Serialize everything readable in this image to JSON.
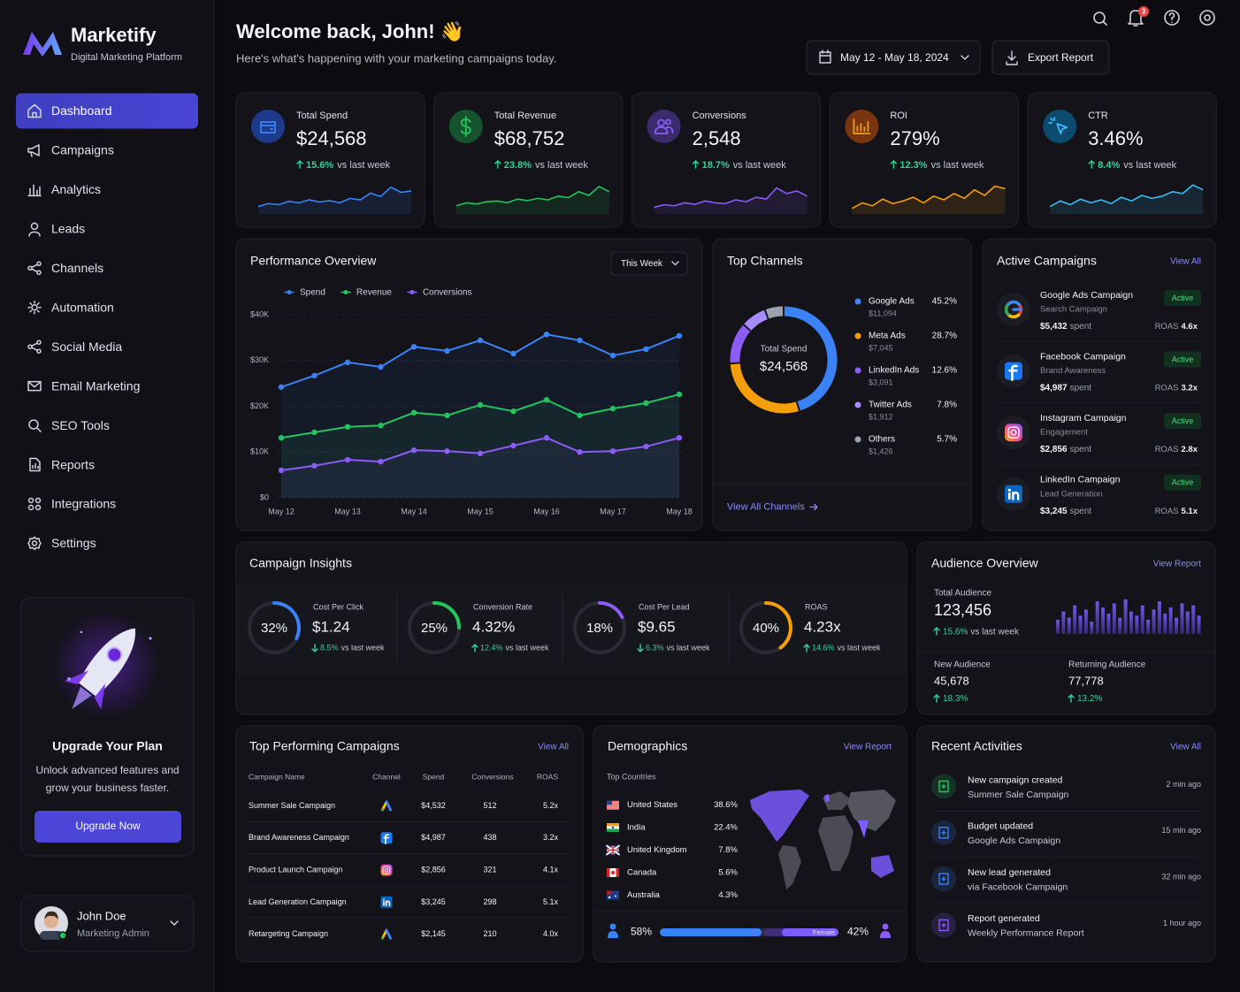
{
  "sidebar": {
    "brand": "Marketify",
    "tagline": "Digital Marketing Platform",
    "nav": [
      "Dashboard",
      "Campaigns",
      "Analytics",
      "Leads",
      "Channels",
      "Automation",
      "Social Media",
      "Email Marketing",
      "SEO Tools",
      "Reports",
      "Integrations",
      "Settings"
    ],
    "active": 0,
    "upgrade": {
      "title": "Upgrade Your Plan",
      "text": [
        "Unlock advanced features and",
        "grow your business faster."
      ],
      "button": "Upgrade Now"
    },
    "user": {
      "name": "John Doe",
      "role": "Marketing Admin"
    }
  },
  "header": {
    "title": "Welcome back, John! 👋",
    "subtitle": "Here's what's happening with your marketing campaigns today.",
    "date_range": "May 12 - May 18, 2024",
    "export": "Export Report",
    "notifications": "3"
  },
  "labels": {
    "vs_last_week": "vs last week",
    "spent": "spent",
    "roas": "ROAS",
    "active": "Active"
  },
  "kpis": {
    "ylim": [
      0,
      100
    ],
    "items": [
      {
        "label": "Total Spend",
        "value": "$24,568",
        "change": "15.6%",
        "color": "#3b82f6",
        "values": [
          20,
          28,
          25,
          34,
          30,
          38,
          32,
          36,
          30,
          42,
          38,
          56,
          47,
          72,
          58,
          62
        ]
      },
      {
        "label": "Total Revenue",
        "value": "$68,752",
        "change": "23.8%",
        "color": "#22c55e",
        "values": [
          22,
          30,
          27,
          33,
          35,
          30,
          40,
          36,
          42,
          38,
          48,
          44,
          60,
          50,
          74,
          60
        ]
      },
      {
        "label": "Conversions",
        "value": "2,548",
        "change": "18.7%",
        "color": "#8b5cf6",
        "values": [
          18,
          25,
          22,
          30,
          26,
          35,
          30,
          28,
          38,
          33,
          45,
          40,
          70,
          55,
          62,
          48
        ]
      },
      {
        "label": "ROI",
        "value": "279%",
        "change": "12.3%",
        "color": "#f59e0b",
        "values": [
          15,
          30,
          22,
          40,
          28,
          35,
          45,
          30,
          48,
          38,
          55,
          42,
          65,
          50,
          75,
          68
        ]
      },
      {
        "label": "CTR",
        "value": "3.46%",
        "change": "8.4%",
        "color": "#38bdf8",
        "values": [
          20,
          35,
          25,
          40,
          30,
          38,
          28,
          45,
          35,
          50,
          42,
          48,
          60,
          55,
          78,
          65
        ]
      }
    ]
  },
  "performance": {
    "type": "line",
    "title": "Performance Overview",
    "filter": "This Week",
    "categories": [
      "May 12",
      null,
      "May 13",
      null,
      "May 14",
      null,
      "May 15",
      null,
      "May 16",
      null,
      "May 17",
      null,
      "May 18"
    ],
    "series": [
      {
        "name": "Spend",
        "color": "#3b82f6",
        "values": [
          24200,
          26700,
          29600,
          28600,
          33000,
          32100,
          34400,
          31500,
          35700,
          34400,
          31100,
          32500,
          35400
        ]
      },
      {
        "name": "Revenue",
        "color": "#22c55e",
        "values": [
          13100,
          14300,
          15500,
          15800,
          18600,
          18000,
          20300,
          18900,
          21400,
          18000,
          19500,
          20700,
          22600
        ]
      },
      {
        "name": "Conversions",
        "color": "#8b5cf6",
        "values": [
          6000,
          7000,
          8300,
          7900,
          10400,
          10200,
          9700,
          11400,
          13100,
          10000,
          10200,
          11200,
          13100
        ]
      }
    ],
    "ylim": [
      0,
      40000
    ],
    "yticks": [
      {
        "value": 0,
        "label": "$0"
      },
      {
        "value": 10000,
        "label": "$10K"
      },
      {
        "value": 20000,
        "label": "$20K"
      },
      {
        "value": 30000,
        "label": "$30K"
      },
      {
        "value": 40000,
        "label": "$40K"
      }
    ],
    "grid": true
  },
  "channels": {
    "type": "donut",
    "title": "Top Channels",
    "center_label": "Total Spend",
    "total": "$24,568",
    "items": [
      {
        "name": "Google Ads",
        "amount": "$11,094",
        "value": 45.2,
        "value_label": "45.2%",
        "color": "#3b82f6"
      },
      {
        "name": "Meta Ads",
        "amount": "$7,045",
        "value": 28.7,
        "value_label": "28.7%",
        "color": "#f59e0b"
      },
      {
        "name": "LinkedIn Ads",
        "amount": "$3,091",
        "value": 12.6,
        "value_label": "12.6%",
        "color": "#8b5cf6"
      },
      {
        "name": "Twitter Ads",
        "amount": "$1,912",
        "value": 7.8,
        "value_label": "7.8%",
        "color": "#a78bfa"
      },
      {
        "name": "Others",
        "amount": "$1,426",
        "value": 5.7,
        "value_label": "5.7%",
        "color": "#9ca3af"
      }
    ],
    "link": "View All Channels"
  },
  "active_campaigns": {
    "title": "Active Campaigns",
    "link": "View All",
    "items": [
      {
        "name": "Google Ads Campaign",
        "type": "Search Campaign",
        "spent": "$5,432",
        "roas": "4.6x",
        "icon": "google"
      },
      {
        "name": "Facebook Campaign",
        "type": "Brand Awareness",
        "spent": "$4,987",
        "roas": "3.2x",
        "icon": "facebook"
      },
      {
        "name": "Instagram Campaign",
        "type": "Engagement",
        "spent": "$2,856",
        "roas": "2.8x",
        "icon": "instagram"
      },
      {
        "name": "LinkedIn Campaign",
        "type": "Lead Generation",
        "spent": "$3,245",
        "roas": "5.1x",
        "icon": "linkedin"
      }
    ]
  },
  "insights": {
    "title": "Campaign Insights",
    "items": [
      {
        "value": 32,
        "value_label": "32%",
        "name": "Cost Per Click",
        "metric": "$1.24",
        "change": "8.5%",
        "direction": "down",
        "color": "#3b82f6"
      },
      {
        "value": 25,
        "value_label": "25%",
        "name": "Conversion Rate",
        "metric": "4.32%",
        "change": "12.4%",
        "direction": "up",
        "color": "#22c55e"
      },
      {
        "value": 18,
        "value_label": "18%",
        "name": "Cost Per Lead",
        "metric": "$9.65",
        "change": "6.3%",
        "direction": "down",
        "color": "#8b5cf6"
      },
      {
        "value": 40,
        "value_label": "40%",
        "name": "ROAS",
        "metric": "4.23x",
        "change": "14.6%",
        "direction": "up",
        "color": "#f59e0b"
      }
    ]
  },
  "audience": {
    "title": "Audience Overview",
    "link": "View Report",
    "total_label": "Total Audience",
    "total": "123,456",
    "change": "15.6%",
    "ylim": [
      0,
      100
    ],
    "bars": [
      35,
      55,
      40,
      70,
      45,
      60,
      30,
      80,
      65,
      50,
      75,
      40,
      85,
      55,
      45,
      70,
      35,
      60,
      80,
      50,
      65,
      40,
      75,
      55,
      70,
      45
    ],
    "new_label": "New Audience",
    "new_value": "45,678",
    "new_change": "18.3%",
    "returning_label": "Returning Audience",
    "returning_value": "77,778",
    "returning_change": "13.2%"
  },
  "top_campaigns": {
    "title": "Top Performing Campaigns",
    "link": "View All",
    "headers": [
      "Campaign Name",
      "Channel",
      "Spend",
      "Conversions",
      "ROAS"
    ],
    "rows": [
      {
        "name": "Summer Sale Campaign",
        "icon": "googleads",
        "spend": "$4,532",
        "conversions": 512,
        "roas": "5.2x"
      },
      {
        "name": "Brand Awareness Campaign",
        "icon": "facebook",
        "spend": "$4,987",
        "conversions": 438,
        "roas": "3.2x"
      },
      {
        "name": "Product Launch Campaign",
        "icon": "instagram",
        "spend": "$2,856",
        "conversions": 321,
        "roas": "4.1x"
      },
      {
        "name": "Lead Generation Campaign",
        "icon": "linkedin",
        "spend": "$3,245",
        "conversions": 298,
        "roas": "5.1x"
      },
      {
        "name": "Retargeting Campaign",
        "icon": "googleads",
        "spend": "$2,145",
        "conversions": 210,
        "roas": "4.0x"
      }
    ]
  },
  "demographics": {
    "title": "Demographics",
    "link": "View Report",
    "countries_label": "Top Countries",
    "countries": [
      {
        "name": "United States",
        "share": "38.6%",
        "flag": "us"
      },
      {
        "name": "India",
        "share": "22.4%",
        "flag": "in"
      },
      {
        "name": "United Kingdom",
        "share": "7.8%",
        "flag": "uk"
      },
      {
        "name": "Canada",
        "share": "5.6%",
        "flag": "ca"
      },
      {
        "name": "Australia",
        "share": "4.3%",
        "flag": "au"
      }
    ],
    "gender": {
      "male": 58,
      "male_label": "58%",
      "female": 42,
      "female_label": "42%",
      "female_text": "Female"
    }
  },
  "activities": {
    "title": "Recent Activities",
    "link": "View All",
    "items": [
      {
        "title": "New campaign created",
        "detail": "Summer Sale Campaign",
        "time": "2 min ago",
        "color": "#22c55e"
      },
      {
        "title": "Budget updated",
        "detail": "Google Ads Campaign",
        "time": "15 min ago",
        "color": "#3b82f6"
      },
      {
        "title": "New lead generated",
        "detail": "via Facebook Campaign",
        "time": "32 min ago",
        "color": "#3b82f6"
      },
      {
        "title": "Report generated",
        "detail": "Weekly Performance Report",
        "time": "1 hour ago",
        "color": "#8b5cf6"
      }
    ]
  }
}
